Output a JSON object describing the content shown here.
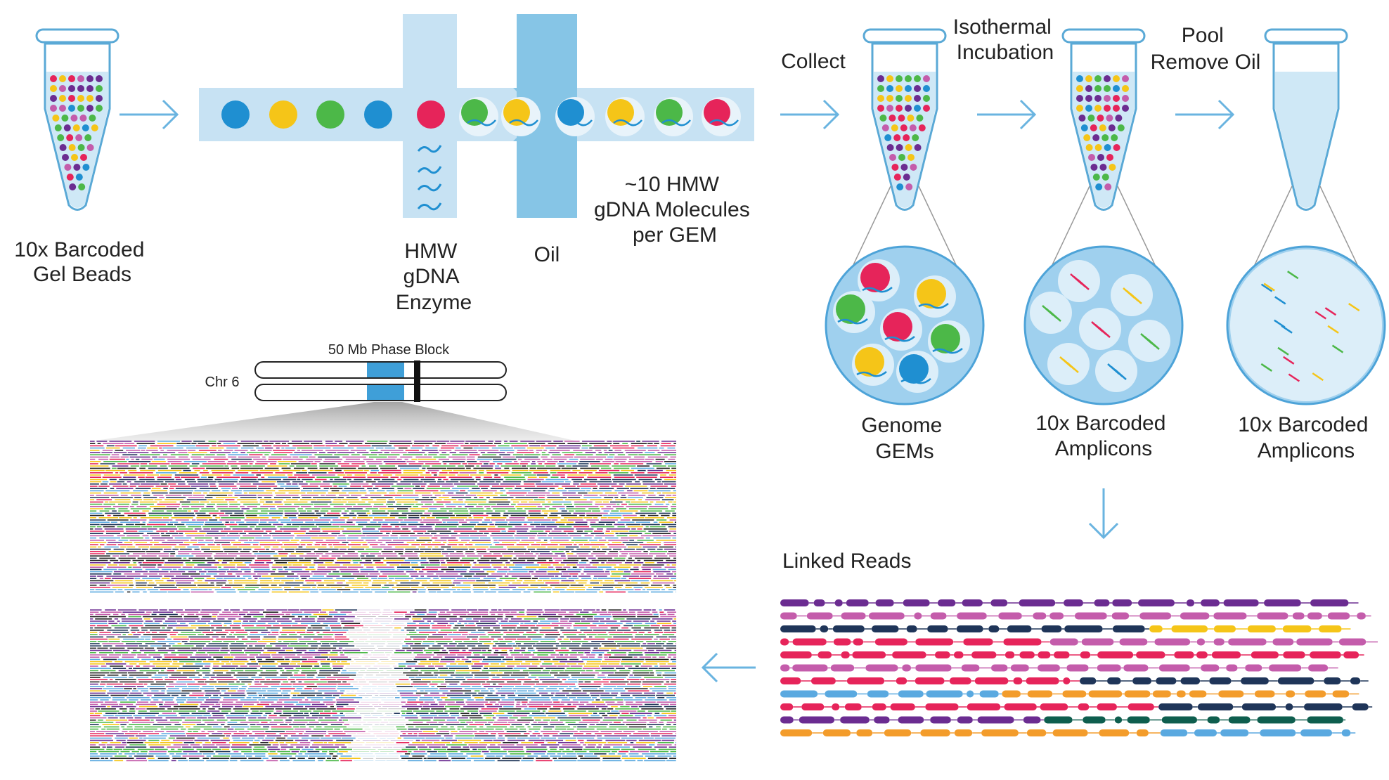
{
  "labels": {
    "gel_beads": [
      "10x Barcoded",
      "Gel Beads"
    ],
    "hmw": [
      "HMW",
      "gDNA",
      "Enzyme"
    ],
    "oil": "Oil",
    "molecules": [
      "~10 HMW",
      "gDNA Molecules",
      "per GEM"
    ],
    "collect": "Collect",
    "isothermal": [
      "Isothermal",
      "Incubation"
    ],
    "pool": [
      "Pool",
      "Remove Oil"
    ],
    "genome_gems": [
      "Genome",
      "GEMs"
    ],
    "amplicons_1": [
      "10x Barcoded",
      "Amplicons"
    ],
    "amplicons_2": [
      "10x Barcoded",
      "Amplicons"
    ],
    "linked_reads": "Linked Reads",
    "phase_block": "50 Mb Phase Block",
    "chromosome": "Chr 6"
  },
  "colors": {
    "channel": "#c7e2f3",
    "oil": "#86c5e6",
    "tube_outline": "#5aa9d6",
    "tube_fill": "#cfe8f6",
    "blue": "#1f8fd1",
    "yellow": "#f5c518",
    "green": "#4cb848",
    "red": "#e6245a",
    "purple": "#6b2c91",
    "magenta": "#c45cab",
    "navy": "#1f3559",
    "orange": "#f39c2b",
    "teal": "#0e5e4e",
    "brown": "#7a4a1e",
    "lightblue": "#5aa9e0"
  }
}
